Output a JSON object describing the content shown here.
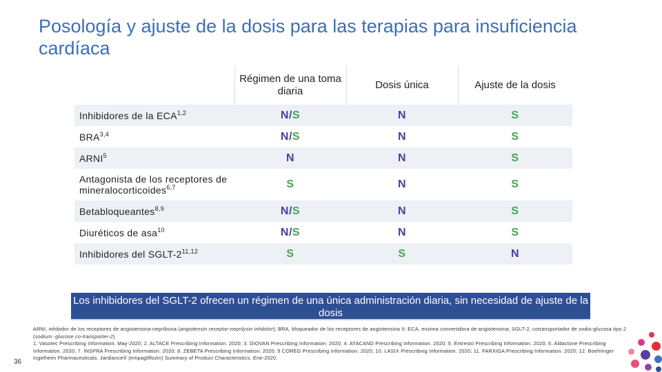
{
  "title": "Posología y ajuste de la dosis para las terapias para insuficiencia cardíaca",
  "table": {
    "headers": [
      "Régimen de una toma diaria",
      "Dosis única",
      "Ajuste de la dosis"
    ],
    "rows": [
      {
        "label": "Inhibidores de la ECA",
        "sup": "1,2",
        "values": [
          "N/S",
          "N",
          "S"
        ]
      },
      {
        "label": "BRA",
        "sup": "3,4",
        "values": [
          "N/S",
          "N",
          "S"
        ]
      },
      {
        "label": "ARNI",
        "sup": "5",
        "values": [
          "N",
          "N",
          "S"
        ]
      },
      {
        "label": "Antagonista de los receptores de mineralocorticoides",
        "sup": "6,7",
        "values": [
          "S",
          "N",
          "S"
        ]
      },
      {
        "label": "Betabloqueantes",
        "sup": "8,9",
        "values": [
          "N/S",
          "N",
          "S"
        ]
      },
      {
        "label": "Diuréticos de asa",
        "sup": "10",
        "values": [
          "N/S",
          "N",
          "S"
        ]
      },
      {
        "label": "Inhibidores del SGLT-2",
        "sup": "11,12",
        "values": [
          "S",
          "S",
          "N"
        ]
      }
    ]
  },
  "banner": "Los inhibidores del SGLT-2 ofrecen un régimen de una única administración diaria, sin necesidad de ajuste de la dosis",
  "footnote": {
    "abbrev_a": "ARNI, inhibidor de los receptores de angiotensina-neprilisina (",
    "abbrev_a_italic": "angiotensin receptor-neprilysin inhibitor",
    "abbrev_b": "); BRA, bloqueador de los receptores de angiotensina II; ECA, enzima convertidora de angiotensina; SGLT-2, cotransportador de sodio-glucosa tipo 2 (",
    "abbrev_b_italic": "sodium -glucose co-transporter-2",
    "abbrev_c": ")",
    "refs": "1. Vasotec Prescribing Information. May-2020; 2. ALTACE Prescribing Information. 2020; 3. DIOVAN Prescribing Information. 2020; 4. ATACAND Prescribing Information. 2020; 5. Entresto Prescribing Information. 2020; 6. Aldactone Prescribing Information. 2020; 7. INSPRA Prescribing Information. 2020; 8. ZEBETA Prescribing Information. 2020; 9 COREG Prescribing Information. 2020; 10. LASIX Prescribing Information. 2020; 11. FARXIGA Prescribing Information. 2020; 12. Boehringer Ingelheim Pharmaceuticals. Jardiance® (empagliflozin) Summary of Product Characteristics. Ene-2020."
  },
  "page_number": "36",
  "colors": {
    "title": "#3a6fb7",
    "n": "#4a3f9e",
    "s": "#3fa84a",
    "banner": "#2f4f94",
    "row_shade": "#edf0f5"
  }
}
